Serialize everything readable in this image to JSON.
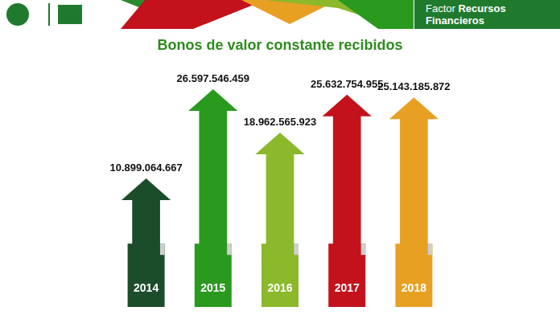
{
  "header": {
    "prefix": "Factor",
    "title": "Recursos Financieros"
  },
  "chart_data": {
    "type": "bar",
    "title": "Bonos de valor constante recibidos",
    "categories": [
      "2014",
      "2015",
      "2016",
      "2017",
      "2018"
    ],
    "values": [
      10899064667,
      26597546459,
      18962565923,
      25632754955,
      25143185872
    ],
    "value_labels": [
      "10.899.064.667",
      "26.597.546.459",
      "18.962.565.923",
      "25.632.754.955",
      "25.143.185.872"
    ],
    "colors": [
      "#1c4d2b",
      "#2a9a1f",
      "#8cb82b",
      "#c3121c",
      "#e8a023"
    ],
    "data_labels": true,
    "grid": false,
    "tick_labels": "x"
  }
}
